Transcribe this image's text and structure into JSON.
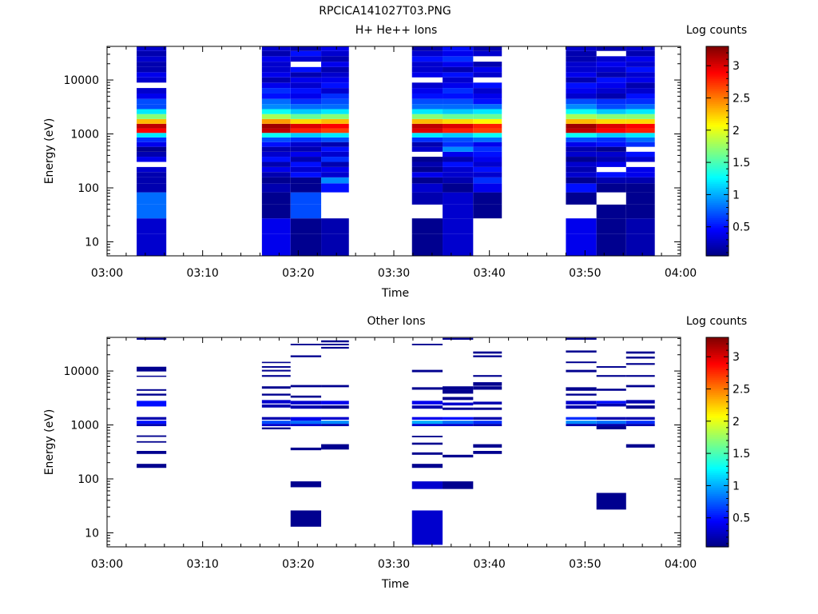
{
  "figure_title": "RPCICA141027T03.PNG",
  "colorbar": {
    "label": "Log counts",
    "min": 0.05,
    "max": 3.3,
    "ticks": [
      0.5,
      1,
      1.5,
      2,
      2.5,
      3
    ],
    "tick_labels": [
      "0.5",
      "1",
      "1.5",
      "2",
      "2.5",
      "3"
    ]
  },
  "chart_data": [
    {
      "type": "heatmap",
      "title": "H+ He++ Ions",
      "xlabel": "Time",
      "ylabel": "Energy (eV)",
      "xlim": [
        0,
        60
      ],
      "ylim": [
        5.5,
        42000
      ],
      "yscale": "log",
      "x_ticks": [
        0,
        10,
        20,
        30,
        40,
        50,
        60
      ],
      "x_tick_labels": [
        "03:00",
        "03:10",
        "03:20",
        "03:30",
        "03:40",
        "03:50",
        "04:00"
      ],
      "y_ticks": [
        10,
        100,
        1000,
        10000
      ],
      "y_tick_labels": [
        "10",
        "100",
        "1000",
        "10000"
      ],
      "energy_bins": [
        10,
        20,
        37,
        65,
        105,
        140,
        175,
        220,
        270,
        340,
        420,
        520,
        640,
        780,
        950,
        1150,
        1400,
        1700,
        2100,
        2600,
        3200,
        4000,
        5000,
        6300,
        8000,
        10000,
        12500,
        15500,
        19500,
        24500,
        31000,
        38500
      ],
      "time_columns": [
        {
          "start": 3.1,
          "end": 6.2,
          "values": [
            0.3,
            0.3,
            0.8,
            0.8,
            0.2,
            0.2,
            0.2,
            0.3,
            null,
            0.4,
            0.2,
            0.1,
            0.4,
            0.6,
            1.2,
            2.9,
            3.1,
            2.3,
            1.7,
            1.2,
            0.7,
            0.7,
            0.4,
            0.3,
            null,
            0.3,
            0.4,
            0.2,
            0.2,
            0.3,
            0.2,
            0.3
          ]
        },
        {
          "start": 16.2,
          "end": 19.2,
          "values": [
            0.4,
            0.4,
            0.1,
            0.1,
            0.2,
            0.1,
            0.2,
            0.4,
            0.2,
            0.5,
            0.3,
            0.2,
            0.5,
            0.7,
            1.3,
            3.1,
            3.2,
            2.4,
            1.8,
            1.3,
            0.9,
            0.8,
            0.5,
            0.6,
            0.4,
            0.2,
            0.4,
            0.3,
            0.3,
            0.4,
            0.2,
            0.3
          ]
        },
        {
          "start": 19.2,
          "end": 22.4,
          "values": [
            0.1,
            0.1,
            0.7,
            0.7,
            0.1,
            0.1,
            0.5,
            0.3,
            0.5,
            0.2,
            0.4,
            0.2,
            0.3,
            0.6,
            1.1,
            2.8,
            3.0,
            2.2,
            1.6,
            1.1,
            0.8,
            0.6,
            0.4,
            0.5,
            0.3,
            0.4,
            0.2,
            0.5,
            null,
            0.3,
            0.5,
            0.2
          ]
        },
        {
          "start": 22.4,
          "end": 25.3,
          "values": [
            0.2,
            0.2,
            null,
            null,
            0.5,
            0.9,
            0.3,
            0.4,
            0.2,
            0.6,
            0.3,
            0.5,
            0.2,
            0.7,
            1.2,
            2.7,
            2.9,
            2.3,
            1.7,
            1.2,
            0.8,
            0.7,
            0.6,
            0.3,
            0.5,
            0.4,
            0.3,
            0.2,
            0.4,
            0.2,
            0.3,
            0.4
          ]
        },
        {
          "start": 31.9,
          "end": 35.1,
          "values": [
            0.1,
            0.1,
            null,
            0.2,
            0.3,
            0.1,
            0.4,
            0.1,
            0.2,
            0.1,
            null,
            0.3,
            0.2,
            0.6,
            1.2,
            3.0,
            3.1,
            2.3,
            1.7,
            1.2,
            0.8,
            0.7,
            0.5,
            0.4,
            0.3,
            null,
            0.4,
            0.3,
            0.3,
            0.5,
            0.3,
            0.2
          ]
        },
        {
          "start": 35.1,
          "end": 38.3,
          "values": [
            0.3,
            0.3,
            0.3,
            0.3,
            0.1,
            0.2,
            0.3,
            0.3,
            0.5,
            0.2,
            0.4,
            0.9,
            0.6,
            0.7,
            1.1,
            2.8,
            3.0,
            2.2,
            1.6,
            1.1,
            0.8,
            0.7,
            0.5,
            0.6,
            0.4,
            0.3,
            0.5,
            0.2,
            0.4,
            0.6,
            0.4,
            0.5
          ]
        },
        {
          "start": 38.3,
          "end": 41.3,
          "values": [
            null,
            null,
            0.1,
            0.1,
            0.4,
            0.6,
            0.3,
            0.5,
            0.3,
            0.4,
            0.5,
            0.6,
            0.4,
            0.8,
            1.3,
            2.7,
            2.8,
            2.1,
            1.6,
            1.2,
            0.8,
            0.5,
            0.4,
            0.3,
            0.5,
            null,
            0.3,
            0.4,
            0.2,
            null,
            0.3,
            0.2
          ]
        },
        {
          "start": 48.0,
          "end": 51.2,
          "values": [
            0.4,
            0.4,
            null,
            0.1,
            0.5,
            0.1,
            0.3,
            0.2,
            0.3,
            0.1,
            0.3,
            0.2,
            0.4,
            0.7,
            1.3,
            3.1,
            3.2,
            2.3,
            1.8,
            1.3,
            0.9,
            0.7,
            0.3,
            0.4,
            0.5,
            0.2,
            0.4,
            0.3,
            0.3,
            0.2,
            0.2,
            0.3
          ]
        },
        {
          "start": 51.2,
          "end": 54.3,
          "values": [
            0.1,
            0.1,
            0.1,
            null,
            0.1,
            0.2,
            0.5,
            null,
            0.4,
            0.2,
            0.3,
            0.1,
            0.5,
            0.6,
            1.1,
            2.9,
            3.0,
            2.2,
            1.7,
            1.1,
            0.7,
            0.6,
            0.2,
            0.3,
            0.4,
            0.5,
            0.2,
            0.3,
            0.4,
            0.3,
            null,
            0.2
          ]
        },
        {
          "start": 54.3,
          "end": 57.3,
          "values": [
            0.2,
            0.2,
            0.1,
            0.1,
            0.1,
            0.2,
            0.4,
            0.4,
            null,
            0.3,
            0.5,
            null,
            0.6,
            0.8,
            1.2,
            2.8,
            2.9,
            2.2,
            1.7,
            1.2,
            0.8,
            0.6,
            0.5,
            0.3,
            0.2,
            0.4,
            0.3,
            0.5,
            0.3,
            0.4,
            0.2,
            0.3
          ]
        }
      ]
    },
    {
      "type": "heatmap",
      "title": "Other Ions",
      "xlabel": "Time",
      "ylabel": "Energy (eV)",
      "xlim": [
        0,
        60
      ],
      "ylim": [
        5.5,
        42000
      ],
      "yscale": "log",
      "x_ticks": [
        0,
        10,
        20,
        30,
        40,
        50,
        60
      ],
      "x_tick_labels": [
        "03:00",
        "03:10",
        "03:20",
        "03:30",
        "03:40",
        "03:50",
        "04:00"
      ],
      "y_ticks": [
        10,
        100,
        1000,
        10000
      ],
      "y_tick_labels": [
        "10",
        "100",
        "1000",
        "10000"
      ],
      "time_columns": [
        {
          "start": 3.1,
          "end": 6.2,
          "cells": [
            [
              160,
              190,
              0.1
            ],
            [
              290,
              330,
              0.1
            ],
            [
              470,
              500,
              0.1
            ],
            [
              600,
              640,
              0.1
            ],
            [
              950,
              1050,
              0.2
            ],
            [
              1050,
              1200,
              0.5
            ],
            [
              1250,
              1400,
              0.2
            ],
            [
              2200,
              2800,
              0.5
            ],
            [
              3500,
              3800,
              0.1
            ],
            [
              4300,
              4600,
              0.1
            ],
            [
              7800,
              8200,
              0.1
            ],
            [
              9800,
              12000,
              0.1
            ],
            [
              38000,
              41000,
              0.1
            ]
          ]
        },
        {
          "start": 16.2,
          "end": 19.2,
          "cells": [
            [
              830,
              900,
              0.1
            ],
            [
              950,
              1050,
              0.3
            ],
            [
              1050,
              1200,
              0.7
            ],
            [
              1250,
              1400,
              0.2
            ],
            [
              2100,
              2400,
              0.2
            ],
            [
              2500,
              2900,
              0.3
            ],
            [
              3500,
              3800,
              0.1
            ],
            [
              4700,
              5200,
              0.1
            ],
            [
              7800,
              8400,
              0.1
            ],
            [
              9800,
              10500,
              0.1
            ],
            [
              11500,
              12300,
              0.1
            ],
            [
              14000,
              14800,
              0.1
            ]
          ]
        },
        {
          "start": 19.2,
          "end": 22.4,
          "cells": [
            [
              13,
              26,
              0.1
            ],
            [
              70,
              90,
              0.1
            ],
            [
              340,
              380,
              0.1
            ],
            [
              950,
              1050,
              0.3
            ],
            [
              1050,
              1200,
              0.8
            ],
            [
              1200,
              1400,
              0.4
            ],
            [
              2000,
              2300,
              0.2
            ],
            [
              2400,
              2800,
              0.3
            ],
            [
              3200,
              3500,
              0.1
            ],
            [
              5000,
              5500,
              0.1
            ],
            [
              18000,
              19500,
              0.1
            ],
            [
              30000,
              32000,
              0.1
            ]
          ]
        },
        {
          "start": 22.4,
          "end": 25.3,
          "cells": [
            [
              350,
              440,
              0.1
            ],
            [
              950,
              1050,
              0.2
            ],
            [
              1050,
              1200,
              0.9
            ],
            [
              1250,
              1400,
              0.3
            ],
            [
              2000,
              2300,
              0.1
            ],
            [
              2400,
              2800,
              0.4
            ],
            [
              5000,
              5500,
              0.1
            ],
            [
              26000,
              28000,
              0.1
            ],
            [
              30000,
              32000,
              0.1
            ],
            [
              34000,
              37000,
              0.1
            ]
          ]
        },
        {
          "start": 31.9,
          "end": 35.1,
          "cells": [
            [
              6,
              26,
              0.3
            ],
            [
              65,
              90,
              0.3
            ],
            [
              160,
              190,
              0.1
            ],
            [
              280,
              310,
              0.1
            ],
            [
              430,
              470,
              0.1
            ],
            [
              590,
              630,
              0.1
            ],
            [
              950,
              1050,
              0.3
            ],
            [
              1050,
              1200,
              1.0
            ],
            [
              1250,
              1400,
              0.4
            ],
            [
              2000,
              2300,
              0.2
            ],
            [
              2400,
              2800,
              0.4
            ],
            [
              4500,
              5000,
              0.1
            ],
            [
              9500,
              10500,
              0.1
            ],
            [
              30000,
              32000,
              0.1
            ]
          ]
        },
        {
          "start": 35.1,
          "end": 38.3,
          "cells": [
            [
              65,
              90,
              0.1
            ],
            [
              250,
              280,
              0.1
            ],
            [
              950,
              1050,
              0.3
            ],
            [
              1050,
              1200,
              0.8
            ],
            [
              1250,
              1400,
              0.5
            ],
            [
              1900,
              2100,
              0.1
            ],
            [
              2300,
              2600,
              0.3
            ],
            [
              2900,
              3300,
              0.1
            ],
            [
              3800,
              4500,
              0.1
            ],
            [
              4500,
              5200,
              0.1
            ],
            [
              38000,
              41000,
              0.1
            ]
          ]
        },
        {
          "start": 38.3,
          "end": 41.3,
          "cells": [
            [
              290,
              330,
              0.1
            ],
            [
              380,
              440,
              0.1
            ],
            [
              950,
              1050,
              0.2
            ],
            [
              1050,
              1200,
              0.6
            ],
            [
              1250,
              1400,
              0.2
            ],
            [
              1900,
              2100,
              0.1
            ],
            [
              2400,
              2700,
              0.2
            ],
            [
              4500,
              5200,
              0.1
            ],
            [
              5300,
              6200,
              0.1
            ],
            [
              7800,
              8400,
              0.1
            ],
            [
              18000,
              19500,
              0.1
            ],
            [
              21000,
              23000,
              0.1
            ]
          ]
        },
        {
          "start": 48.0,
          "end": 51.2,
          "cells": [
            [
              950,
              1050,
              0.2
            ],
            [
              1050,
              1200,
              0.9
            ],
            [
              1250,
              1400,
              0.6
            ],
            [
              2000,
              2300,
              0.2
            ],
            [
              2400,
              2800,
              0.3
            ],
            [
              3500,
              3800,
              0.1
            ],
            [
              4300,
              5000,
              0.1
            ],
            [
              9500,
              10500,
              0.1
            ],
            [
              14000,
              15000,
              0.1
            ],
            [
              22000,
              24000,
              0.1
            ],
            [
              38000,
              41000,
              0.1
            ]
          ]
        },
        {
          "start": 51.2,
          "end": 54.3,
          "cells": [
            [
              27,
              55,
              0.1
            ],
            [
              830,
              950,
              0.1
            ],
            [
              950,
              1050,
              0.2
            ],
            [
              1050,
              1200,
              0.8
            ],
            [
              1250,
              1400,
              0.2
            ],
            [
              2200,
              2500,
              0.2
            ],
            [
              2500,
              2800,
              0.5
            ],
            [
              4300,
              4700,
              0.1
            ],
            [
              7800,
              8400,
              0.1
            ],
            [
              11500,
              12300,
              0.1
            ]
          ]
        },
        {
          "start": 54.3,
          "end": 57.3,
          "cells": [
            [
              380,
              440,
              0.1
            ],
            [
              950,
              1050,
              0.2
            ],
            [
              1050,
              1200,
              0.6
            ],
            [
              1250,
              1400,
              0.2
            ],
            [
              2000,
              2300,
              0.1
            ],
            [
              2500,
              2900,
              0.2
            ],
            [
              5000,
              5500,
              0.1
            ],
            [
              7800,
              8400,
              0.1
            ],
            [
              13000,
              14000,
              0.1
            ],
            [
              17000,
              18500,
              0.1
            ],
            [
              21000,
              23000,
              0.1
            ]
          ]
        }
      ]
    }
  ]
}
